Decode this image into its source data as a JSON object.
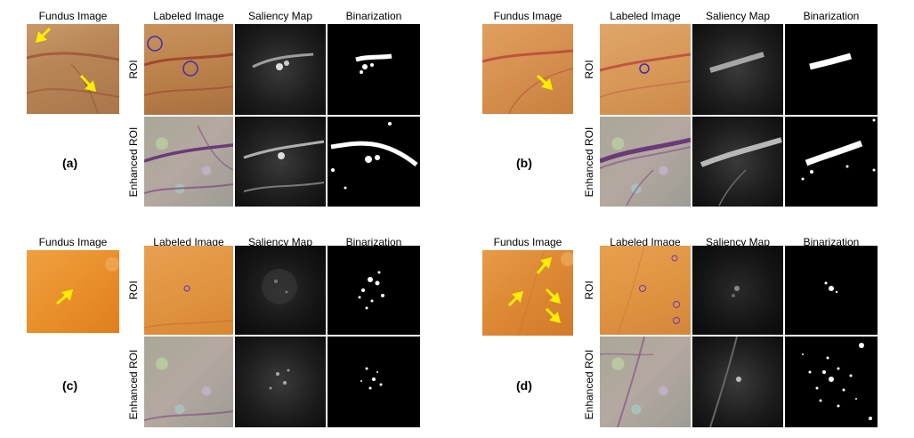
{
  "labels": {
    "fundus_image": "Fundus Image",
    "labeled_image": "Labeled Image",
    "saliency_map": "Saliency Map",
    "binarization": "Binarization",
    "roi": "ROI",
    "enhanced_roi": "Enhanced ROI"
  },
  "panels": [
    {
      "id": "a",
      "label": "(a)"
    },
    {
      "id": "b",
      "label": "(b)"
    },
    {
      "id": "c",
      "label": "(c)"
    },
    {
      "id": "d",
      "label": "(d)"
    }
  ],
  "colors": {
    "arrow": "#ffee00",
    "circle": "#3a2db8",
    "vessel": "#a03a2a",
    "enhanced_vessel": "#6a3a78"
  }
}
